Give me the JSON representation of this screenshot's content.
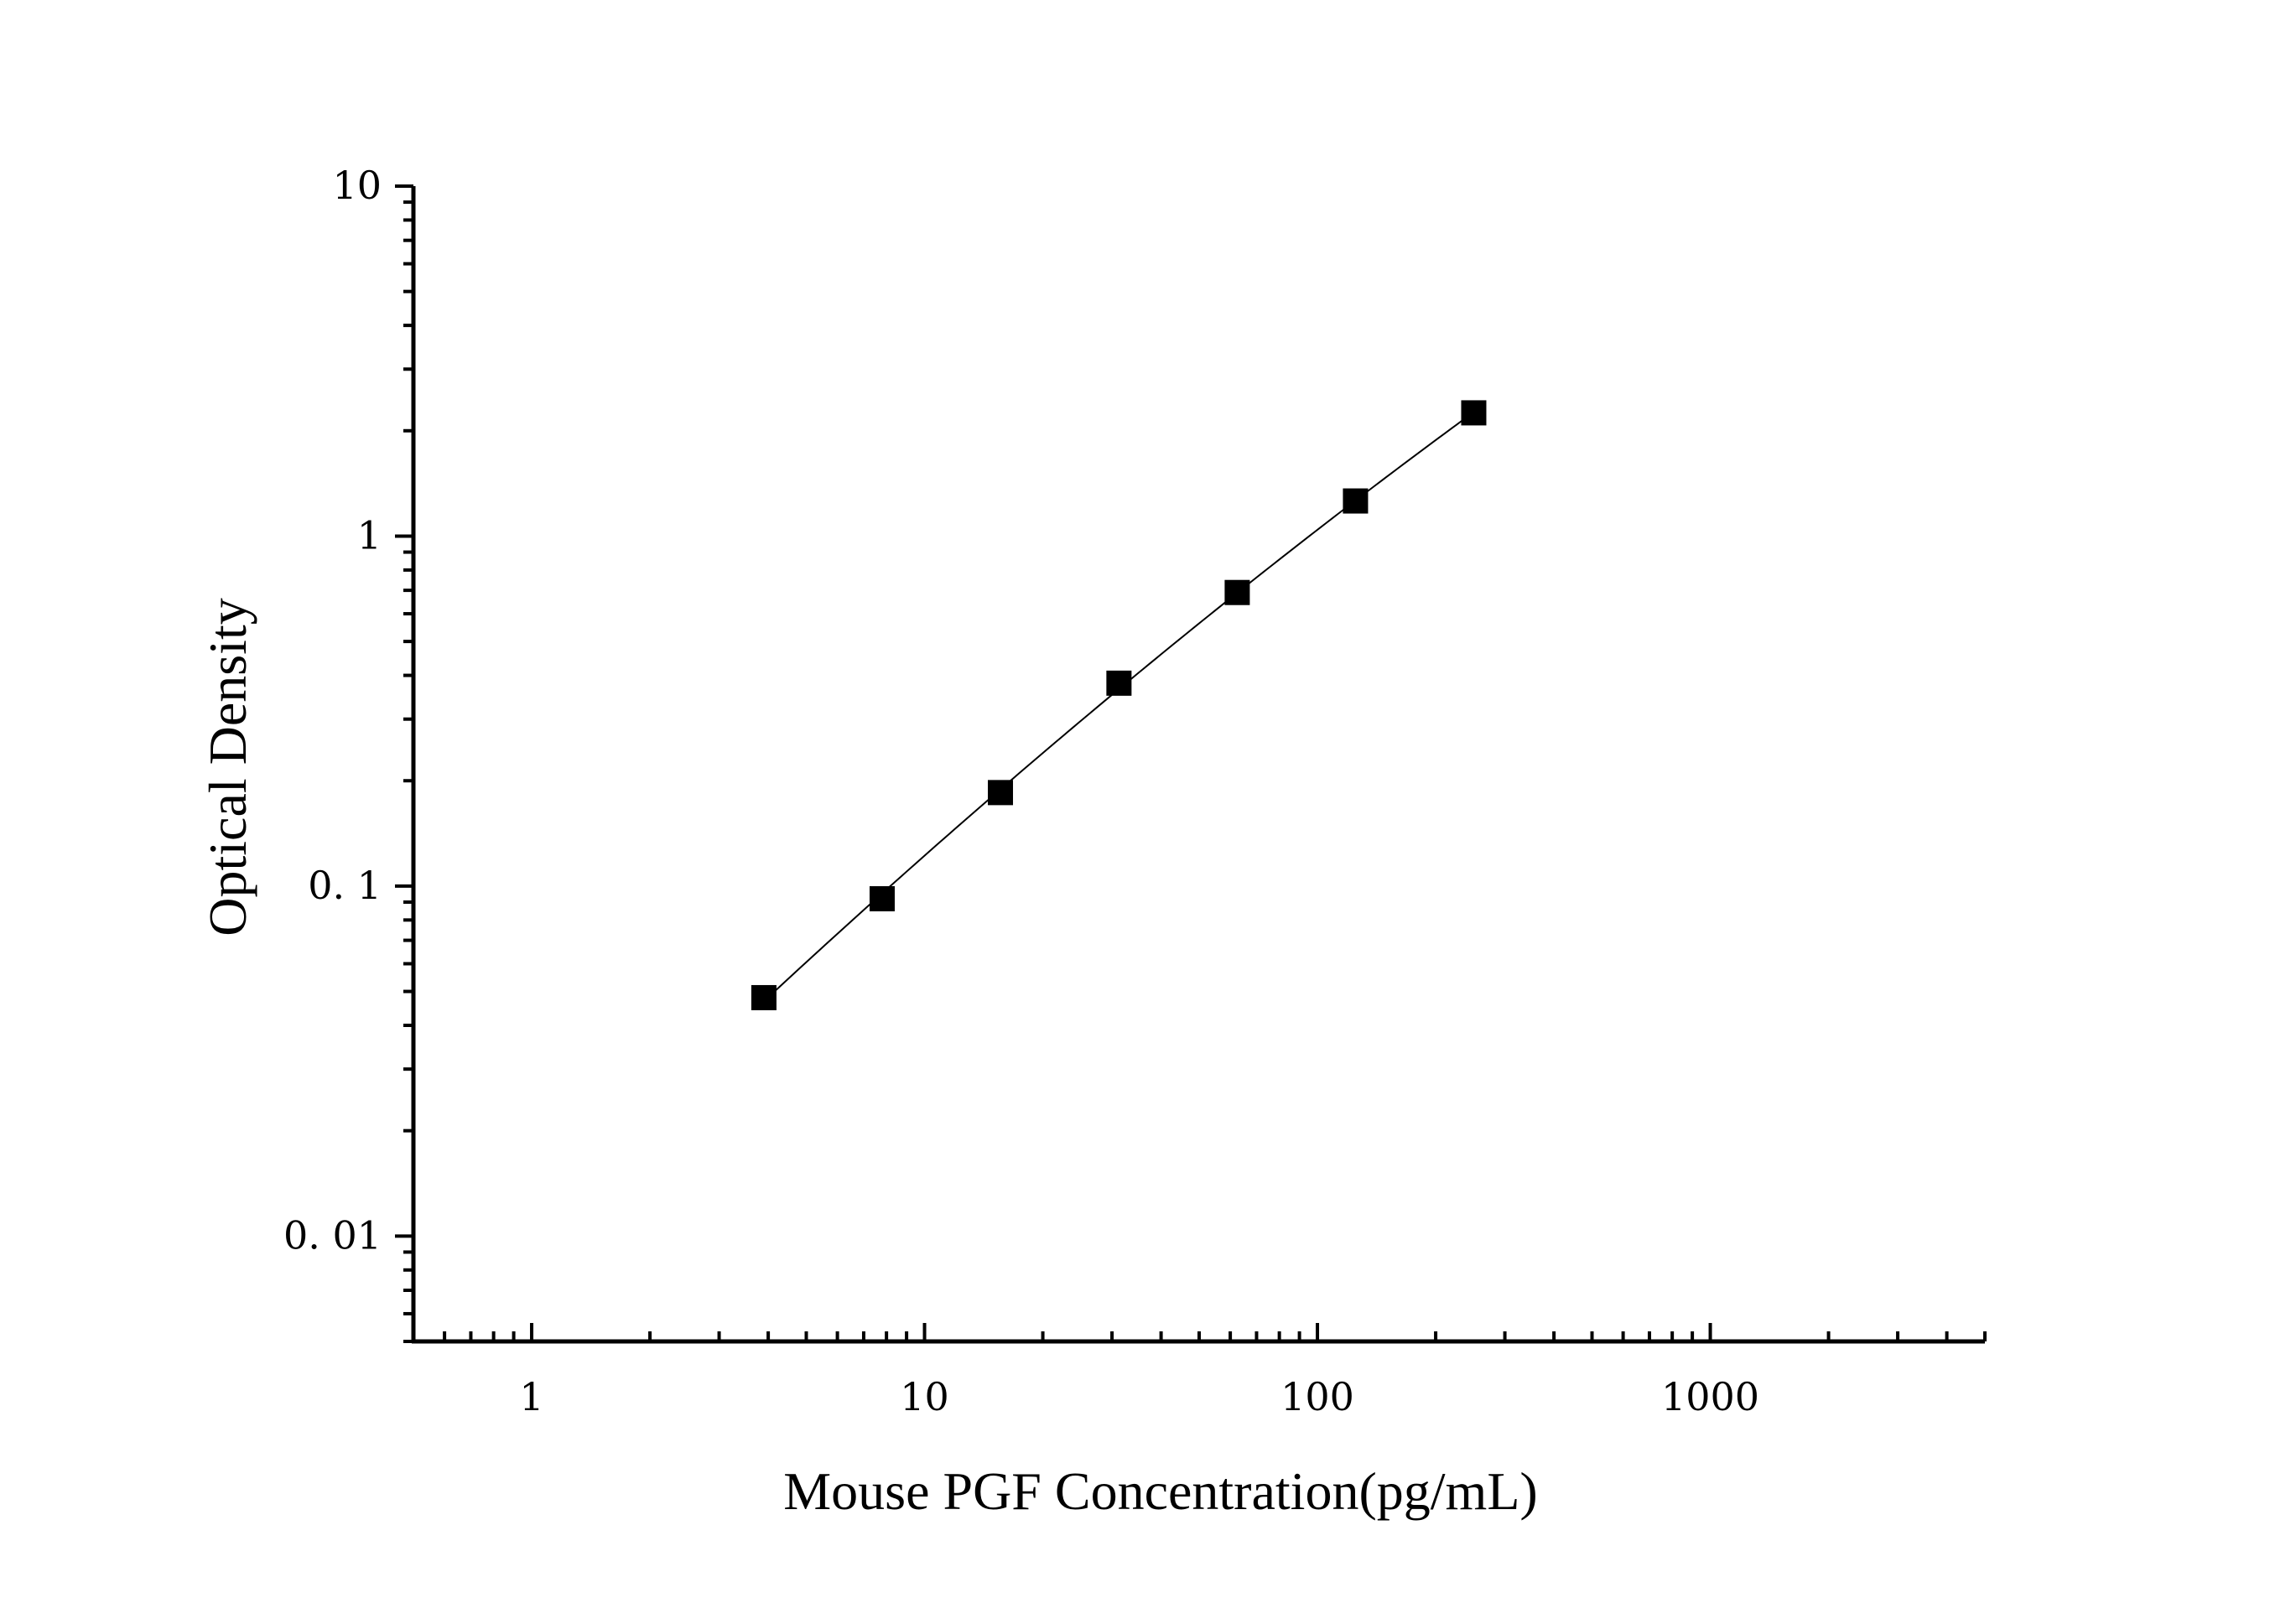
{
  "chart_data": {
    "type": "scatter",
    "xlabel": "Mouse PGF Concentration(pg/mL)",
    "ylabel": "Optical Density",
    "xscale": "log",
    "yscale": "log",
    "xlim": [
      0.5,
      5000
    ],
    "ylim": [
      0.005,
      10
    ],
    "x_ticks": [
      {
        "value": 1,
        "label": "1"
      },
      {
        "value": 10,
        "label": "10"
      },
      {
        "value": 100,
        "label": "100"
      },
      {
        "value": 1000,
        "label": "1000"
      }
    ],
    "y_ticks": [
      {
        "value": 10,
        "label": "10"
      },
      {
        "value": 1,
        "label": "1"
      },
      {
        "value": 0.1,
        "label": "0. 1"
      },
      {
        "value": 0.01,
        "label": "0. 01"
      }
    ],
    "grid": false,
    "legend": "none",
    "series": [
      {
        "x": [
          3.9,
          7.8,
          15.6,
          31.25,
          62.5,
          125,
          250
        ],
        "y": [
          0.048,
          0.092,
          0.185,
          0.38,
          0.69,
          1.26,
          2.25
        ],
        "marker": "square",
        "color": "#000000",
        "fit_curve": true
      }
    ]
  }
}
